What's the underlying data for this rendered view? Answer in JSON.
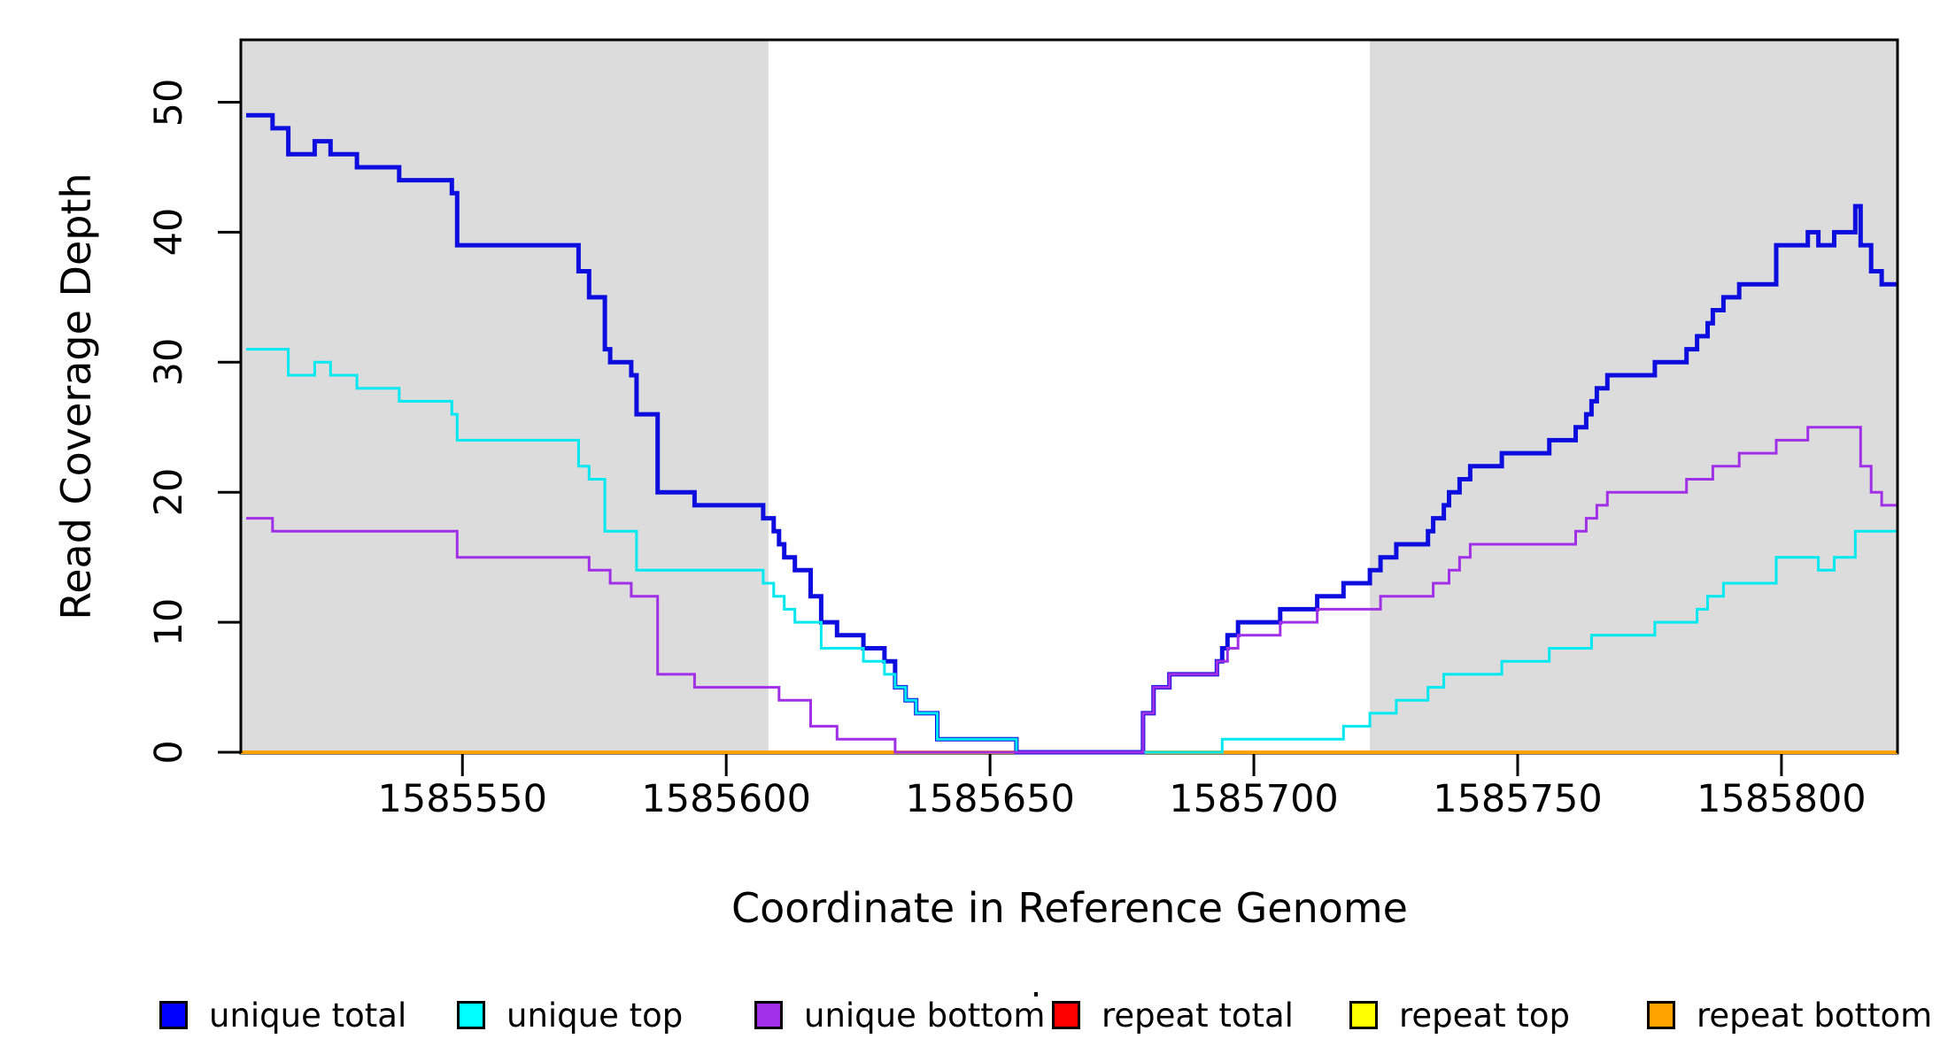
{
  "figure": {
    "xlabel": "Coordinate in Reference Genome",
    "ylabel": "Read Coverage Depth"
  },
  "chart_data": {
    "type": "line",
    "subtype": "step-coverage-plot",
    "title": "",
    "xlabel": "Coordinate in Reference Genome",
    "ylabel": "Read Coverage Depth",
    "xlim": [
      1585508,
      1585822
    ],
    "ylim": [
      0,
      54.8
    ],
    "grid": false,
    "x_ticks": [
      {
        "value": 1585550,
        "label": "1585550"
      },
      {
        "value": 1585600,
        "label": "1585600"
      },
      {
        "value": 1585650,
        "label": "1585650"
      },
      {
        "value": 1585700,
        "label": "1585700"
      },
      {
        "value": 1585750,
        "label": "1585750"
      },
      {
        "value": 1585800,
        "label": "1585800"
      }
    ],
    "y_ticks": [
      {
        "value": 0,
        "label": "0"
      },
      {
        "value": 10,
        "label": "10"
      },
      {
        "value": 20,
        "label": "20"
      },
      {
        "value": 30,
        "label": "30"
      },
      {
        "value": 40,
        "label": "40"
      },
      {
        "value": 50,
        "label": "50"
      }
    ],
    "shaded_regions": [
      {
        "x0": 1585508,
        "x1": 1585608,
        "color": "#DCDCDC"
      },
      {
        "x0": 1585722,
        "x1": 1585822,
        "color": "#DCDCDC"
      }
    ],
    "series": [
      {
        "name": "repeat total",
        "color": "#FF0000",
        "width": 3,
        "steps": [
          [
            1585508,
            0
          ]
        ]
      },
      {
        "name": "repeat top",
        "color": "#FFFF00",
        "width": 3,
        "steps": [
          [
            1585508,
            0
          ]
        ]
      },
      {
        "name": "repeat bottom",
        "color": "#FFA200",
        "width": 4,
        "steps": [
          [
            1585508,
            0
          ]
        ]
      },
      {
        "name": "unique total",
        "color": "#0D0DDF",
        "width": 5,
        "sum_of": [
          "unique top",
          "unique bottom"
        ],
        "steps": []
      },
      {
        "name": "unique top",
        "color": "#00E8F0",
        "width": 3,
        "steps": [
          [
            1585509,
            31
          ],
          [
            1585517,
            29
          ],
          [
            1585522,
            30
          ],
          [
            1585525,
            29
          ],
          [
            1585530,
            28
          ],
          [
            1585538,
            27
          ],
          [
            1585548,
            26
          ],
          [
            1585549,
            24
          ],
          [
            1585572,
            22
          ],
          [
            1585574,
            21
          ],
          [
            1585577,
            17
          ],
          [
            1585583,
            14
          ],
          [
            1585607,
            13
          ],
          [
            1585609,
            12
          ],
          [
            1585611,
            11
          ],
          [
            1585613,
            10
          ],
          [
            1585618,
            8
          ],
          [
            1585626,
            7
          ],
          [
            1585630,
            6
          ],
          [
            1585632,
            5
          ],
          [
            1585634,
            4
          ],
          [
            1585636,
            3
          ],
          [
            1585640,
            1
          ],
          [
            1585655,
            0
          ],
          [
            1585694,
            1
          ],
          [
            1585717,
            2
          ],
          [
            1585722,
            3
          ],
          [
            1585727,
            4
          ],
          [
            1585733,
            5
          ],
          [
            1585736,
            6
          ],
          [
            1585747,
            7
          ],
          [
            1585756,
            8
          ],
          [
            1585764,
            9
          ],
          [
            1585776,
            10
          ],
          [
            1585784,
            11
          ],
          [
            1585786,
            12
          ],
          [
            1585789,
            13
          ],
          [
            1585799,
            15
          ],
          [
            1585807,
            14
          ],
          [
            1585810,
            15
          ],
          [
            1585814,
            17
          ]
        ]
      },
      {
        "name": "unique bottom",
        "color": "#A22FE8",
        "width": 3,
        "steps": [
          [
            1585509,
            18
          ],
          [
            1585514,
            17
          ],
          [
            1585549,
            15
          ],
          [
            1585574,
            14
          ],
          [
            1585578,
            13
          ],
          [
            1585582,
            12
          ],
          [
            1585587,
            6
          ],
          [
            1585594,
            5
          ],
          [
            1585610,
            4
          ],
          [
            1585616,
            2
          ],
          [
            1585621,
            1
          ],
          [
            1585632,
            0
          ],
          [
            1585679,
            3
          ],
          [
            1585681,
            5
          ],
          [
            1585684,
            6
          ],
          [
            1585693,
            7
          ],
          [
            1585695,
            8
          ],
          [
            1585697,
            9
          ],
          [
            1585705,
            10
          ],
          [
            1585712,
            11
          ],
          [
            1585724,
            12
          ],
          [
            1585734,
            13
          ],
          [
            1585737,
            14
          ],
          [
            1585739,
            15
          ],
          [
            1585741,
            16
          ],
          [
            1585761,
            17
          ],
          [
            1585763,
            18
          ],
          [
            1585765,
            19
          ],
          [
            1585767,
            20
          ],
          [
            1585782,
            21
          ],
          [
            1585787,
            22
          ],
          [
            1585792,
            23
          ],
          [
            1585799,
            24
          ],
          [
            1585805,
            25
          ],
          [
            1585815,
            22
          ],
          [
            1585817,
            20
          ],
          [
            1585819,
            19
          ]
        ]
      }
    ],
    "legend_position": "bottom",
    "legend": [
      {
        "label": "unique total",
        "color": "#0000FF"
      },
      {
        "label": "unique top",
        "color": "#00FFFF"
      },
      {
        "label": "unique bottom",
        "color": "#A22FE8"
      },
      {
        "label": "repeat total",
        "color": "#FF0000"
      },
      {
        "label": "repeat top",
        "color": "#FFFF00"
      },
      {
        "label": "repeat bottom",
        "color": "#FFA200"
      }
    ]
  },
  "colors": {
    "background": "#FFFFFF",
    "shade": "#DCDCDC",
    "axis": "#000000"
  }
}
